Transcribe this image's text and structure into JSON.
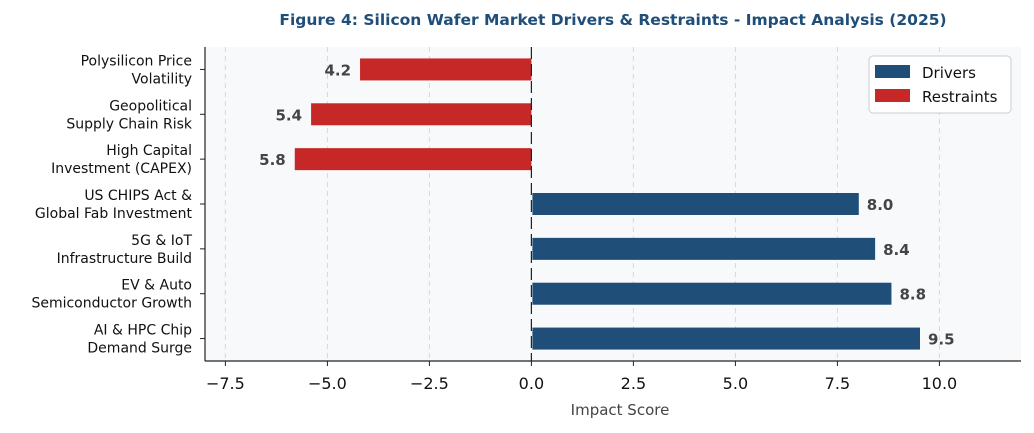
{
  "chart_data": {
    "type": "bar",
    "orientation": "horizontal",
    "title": "Figure 4: Silicon Wafer Market Drivers & Restraints - Impact Analysis (2025)",
    "xlabel": "Impact Score",
    "ylabel": "",
    "xlim": [
      -8,
      12
    ],
    "xticks": [
      -7.5,
      -5.0,
      -2.5,
      0.0,
      2.5,
      5.0,
      7.5,
      10.0
    ],
    "xtick_labels": [
      "−7.5",
      "−5.0",
      "−2.5",
      "0.0",
      "2.5",
      "5.0",
      "7.5",
      "10.0"
    ],
    "grid": "vertical dashed",
    "legend": "bottom-right",
    "categories": [
      [
        "Polysilicon Price",
        "Volatility"
      ],
      [
        "Geopolitical",
        "Supply Chain Risk"
      ],
      [
        "High Capital",
        "Investment (CAPEX)"
      ],
      [
        "US CHIPS Act &",
        "Global Fab Investment"
      ],
      [
        "5G & IoT",
        "Infrastructure Build"
      ],
      [
        "EV & Auto",
        "Semiconductor Growth"
      ],
      [
        "AI & HPC Chip",
        "Demand Surge"
      ]
    ],
    "values": [
      -4.2,
      -5.4,
      -5.8,
      8.0,
      8.4,
      8.8,
      9.5
    ],
    "data_labels": [
      "4.2",
      "5.4",
      "5.8",
      "8.0",
      "8.4",
      "8.8",
      "9.5"
    ],
    "series": [
      {
        "name": "Drivers",
        "color": "#1f4e79"
      },
      {
        "name": "Restraints",
        "color": "#c62828"
      }
    ]
  }
}
